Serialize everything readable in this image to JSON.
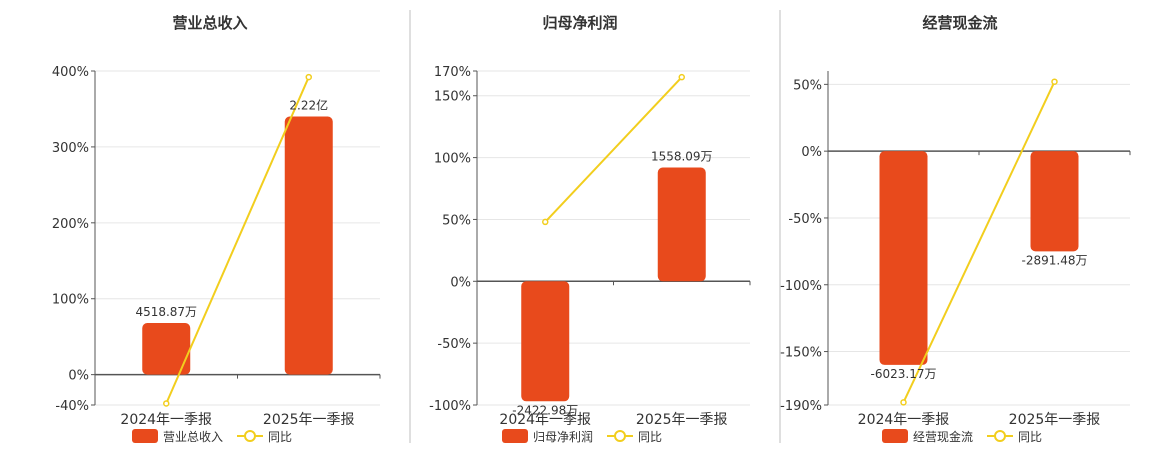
{
  "colors": {
    "bar": "#E84A1C",
    "line": "#F2CE1E",
    "grid": "#E6E6E6",
    "axis": "#555555",
    "text": "#333333",
    "divider": "#BFBFBF"
  },
  "legend": {
    "placement": "bottom-center"
  },
  "chart_data": [
    {
      "type": "bar",
      "title": "营业总收入",
      "categories": [
        "2024年一季报",
        "2025年一季报"
      ],
      "ylim": [
        -40,
        400
      ],
      "y_ticks": [
        -40,
        0,
        100,
        200,
        300,
        400
      ],
      "y_tick_labels": [
        "-40%",
        "0%",
        "100%",
        "200%",
        "300%",
        "400%"
      ],
      "grid": true,
      "series": [
        {
          "name": "营业总收入",
          "type": "bar",
          "values": [
            68,
            340
          ],
          "labels": [
            "4518.87万",
            "2.22亿"
          ]
        },
        {
          "name": "同比",
          "type": "line",
          "values": [
            -38,
            392
          ]
        }
      ]
    },
    {
      "type": "bar",
      "title": "归母净利润",
      "categories": [
        "2024年一季报",
        "2025年一季报"
      ],
      "ylim": [
        -100,
        170
      ],
      "y_ticks": [
        -100,
        -50,
        0,
        50,
        100,
        150,
        170
      ],
      "y_tick_labels": [
        "-100%",
        "-50%",
        "0%",
        "50%",
        "100%",
        "150%",
        "170%"
      ],
      "grid": true,
      "series": [
        {
          "name": "归母净利润",
          "type": "bar",
          "values": [
            -97,
            92
          ],
          "labels": [
            "-2422.98万",
            "1558.09万"
          ]
        },
        {
          "name": "同比",
          "type": "line",
          "values": [
            48,
            165
          ]
        }
      ]
    },
    {
      "type": "bar",
      "title": "经营现金流",
      "categories": [
        "2024年一季报",
        "2025年一季报"
      ],
      "ylim": [
        -190,
        60
      ],
      "y_ticks": [
        -190,
        -150,
        -100,
        -50,
        0,
        50
      ],
      "y_tick_labels": [
        "-190%",
        "-150%",
        "-100%",
        "-50%",
        "0%",
        "50%"
      ],
      "grid": true,
      "series": [
        {
          "name": "经营现金流",
          "type": "bar",
          "values": [
            -160,
            -75
          ],
          "labels": [
            "-6023.17万",
            "-2891.48万"
          ]
        },
        {
          "name": "同比",
          "type": "line",
          "values": [
            -188,
            52
          ]
        }
      ]
    }
  ]
}
